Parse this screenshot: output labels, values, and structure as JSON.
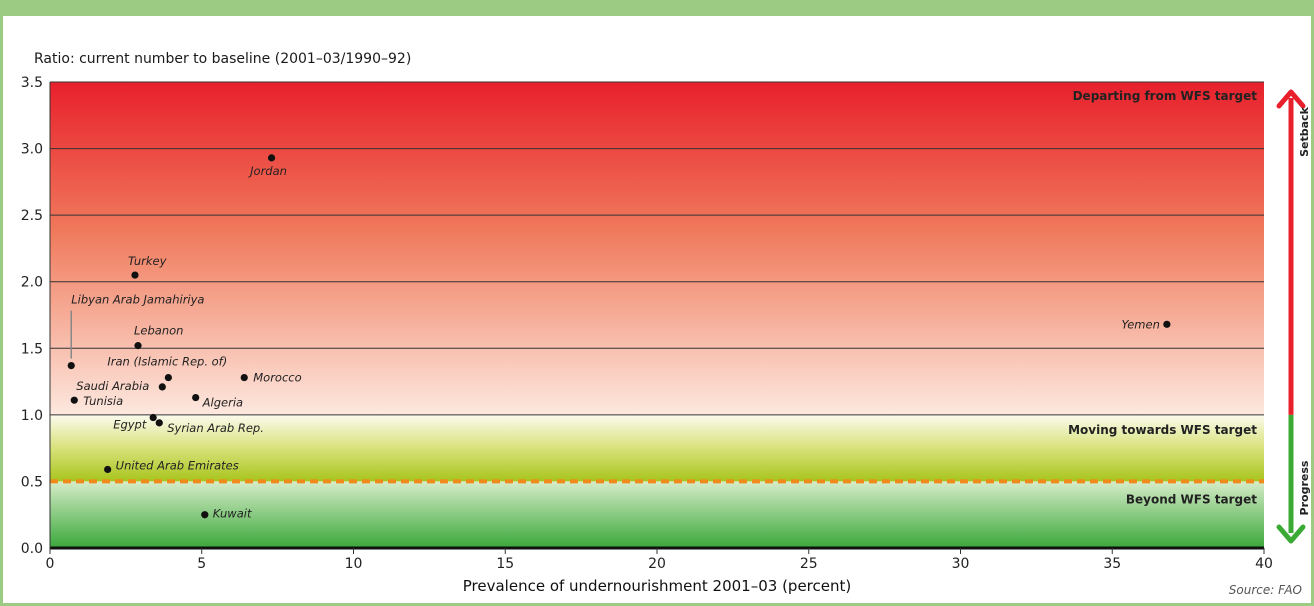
{
  "chart_data": {
    "type": "scatter",
    "ylabel": "Ratio: current number to baseline (2001–03/1990–92)",
    "xlabel": "Prevalence of undernourishment 2001–03 (percent)",
    "source": "Source: FAO",
    "xlim": [
      0,
      40
    ],
    "ylim": [
      0,
      3.5
    ],
    "x_ticks": [
      "0",
      "5",
      "10",
      "15",
      "20",
      "25",
      "30",
      "35",
      "40"
    ],
    "y_ticks": [
      "0.0",
      "0.5",
      "1.0",
      "1.5",
      "2.0",
      "2.5",
      "3.0",
      "3.5"
    ],
    "grid": true,
    "target_line": 0.5,
    "zones": [
      {
        "label": "Departing from WFS target",
        "from": 1.0,
        "to": 3.5
      },
      {
        "label": "Moving towards WFS target",
        "from": 0.5,
        "to": 1.0
      },
      {
        "label": "Beyond WFS target",
        "from": 0.0,
        "to": 0.5
      }
    ],
    "side_arrow": {
      "up_label": "Setback",
      "down_label": "Progress",
      "up_color": "#e8202c",
      "down_color": "#3aaa35"
    },
    "points": [
      {
        "name": "Jordan",
        "x": 7.3,
        "y": 2.93
      },
      {
        "name": "Turkey",
        "x": 2.8,
        "y": 2.05
      },
      {
        "name": "Libyan Arab Jamahiriya",
        "x": 0.7,
        "y": 1.37
      },
      {
        "name": "Lebanon",
        "x": 2.9,
        "y": 1.52
      },
      {
        "name": "Iran (Islamic Rep. of)",
        "x": 3.9,
        "y": 1.28
      },
      {
        "name": "Saudi Arabia",
        "x": 3.7,
        "y": 1.21
      },
      {
        "name": "Morocco",
        "x": 6.4,
        "y": 1.28
      },
      {
        "name": "Tunisia",
        "x": 0.8,
        "y": 1.11
      },
      {
        "name": "Algeria",
        "x": 4.8,
        "y": 1.13
      },
      {
        "name": "Egypt",
        "x": 3.4,
        "y": 0.98
      },
      {
        "name": "Syrian Arab Rep.",
        "x": 3.6,
        "y": 0.94
      },
      {
        "name": "United Arab Emirates",
        "x": 1.9,
        "y": 0.59
      },
      {
        "name": "Kuwait",
        "x": 5.1,
        "y": 0.25
      },
      {
        "name": "Yemen",
        "x": 36.8,
        "y": 1.68
      }
    ]
  }
}
